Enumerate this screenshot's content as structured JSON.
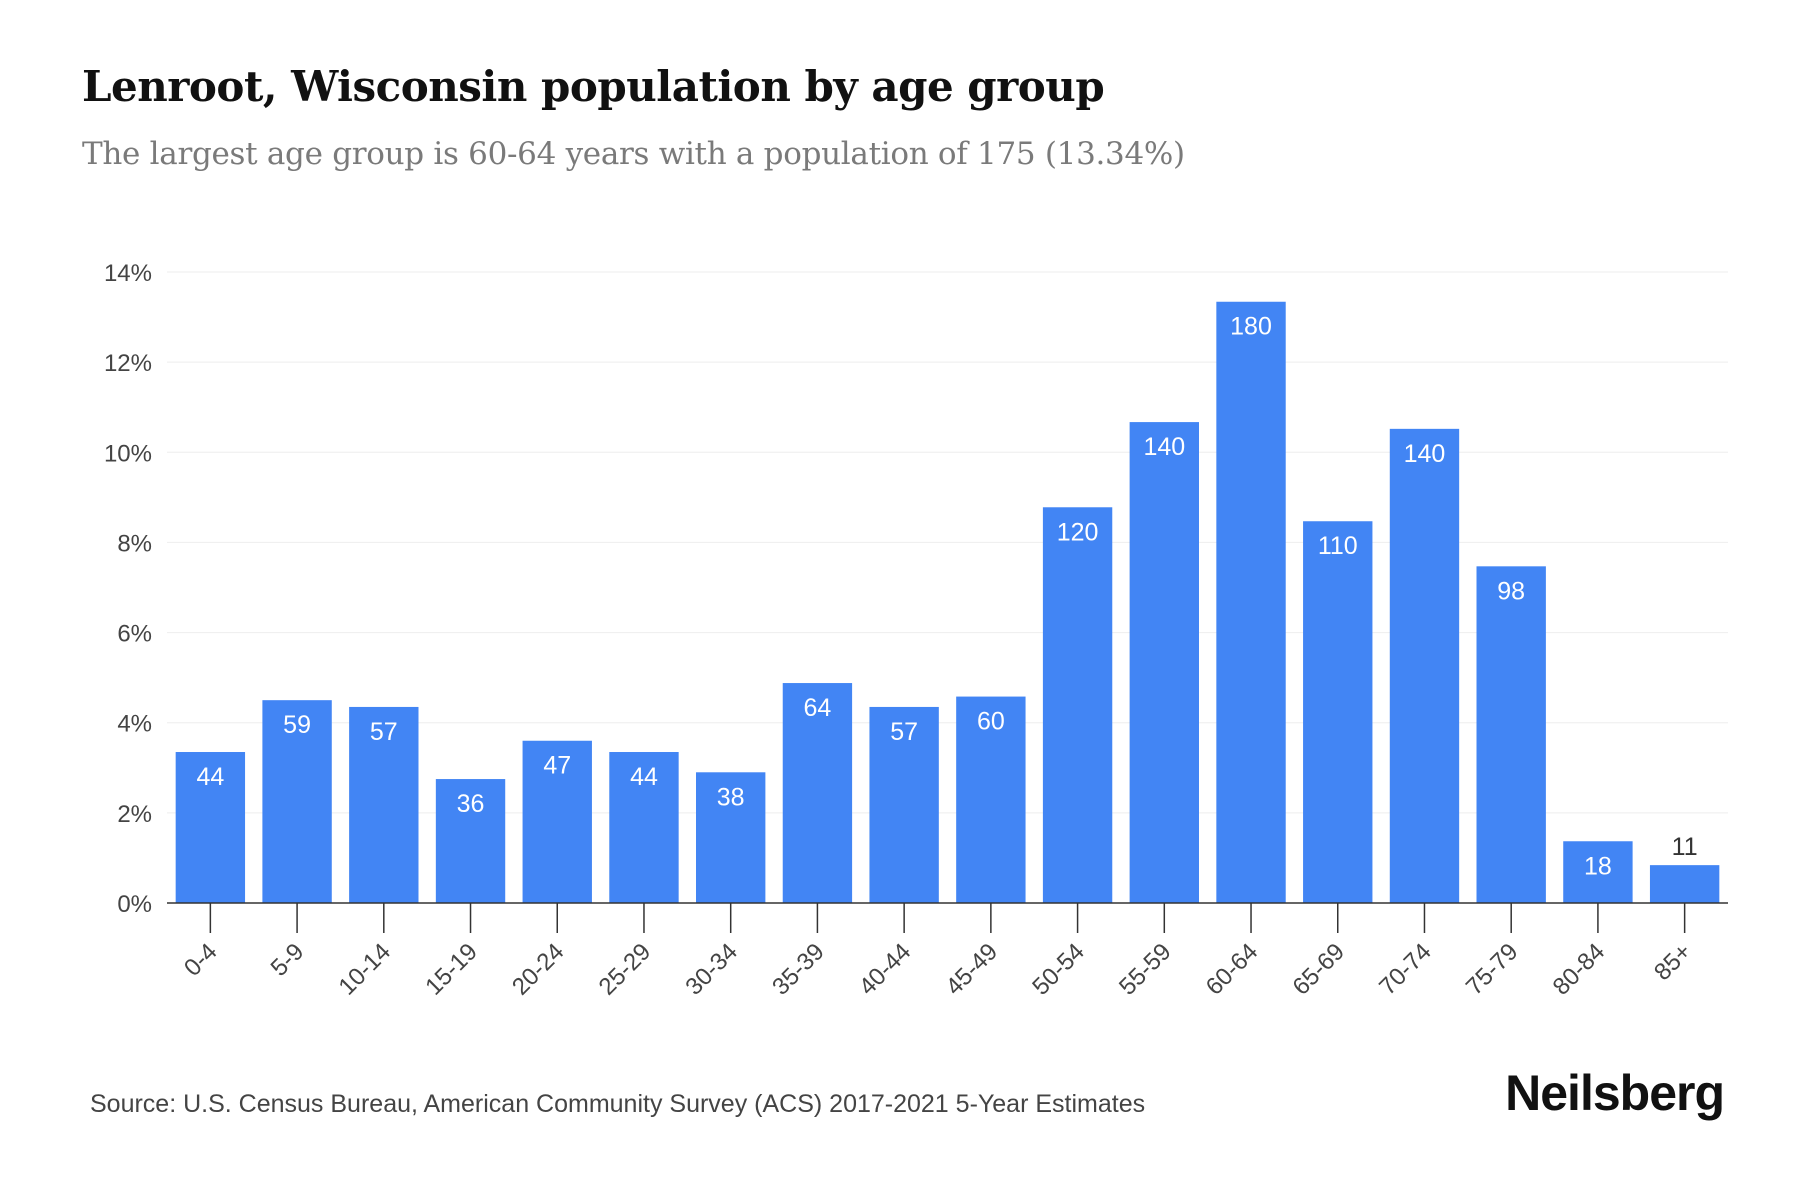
{
  "header": {
    "title": "Lenroot, Wisconsin population by age group",
    "subtitle": "The largest age group is 60-64 years with a population of 175 (13.34%)"
  },
  "footer": {
    "source": "Source: U.S. Census Bureau, American Community Survey (ACS) 2017-2021 5-Year Estimates",
    "brand": "Neilsberg"
  },
  "colors": {
    "bar": "#4285f4",
    "grid": "#eeeeee",
    "axis": "#333333",
    "tick_text": "#444444",
    "label_inside": "#ffffff",
    "label_outside": "#333333"
  },
  "chart_data": {
    "type": "bar",
    "title": "Lenroot, Wisconsin population by age group",
    "subtitle": "The largest age group is 60-64 years with a population of 175 (13.34%)",
    "categories": [
      "0-4",
      "5-9",
      "10-14",
      "15-19",
      "20-24",
      "25-29",
      "30-34",
      "35-39",
      "40-44",
      "45-49",
      "50-54",
      "55-59",
      "60-64",
      "65-69",
      "70-74",
      "75-79",
      "80-84",
      "85+"
    ],
    "values_percent": [
      3.35,
      4.5,
      4.35,
      2.75,
      3.6,
      3.35,
      2.9,
      4.88,
      4.35,
      4.58,
      8.78,
      10.67,
      13.34,
      8.47,
      10.52,
      7.47,
      1.37,
      0.84
    ],
    "data_labels": [
      "44",
      "59",
      "57",
      "36",
      "47",
      "44",
      "38",
      "64",
      "57",
      "60",
      "120",
      "140",
      "180",
      "110",
      "140",
      "98",
      "18",
      "11"
    ],
    "ylim": [
      0,
      14
    ],
    "yticks": [
      0,
      2,
      4,
      6,
      8,
      10,
      12,
      14
    ],
    "ytick_labels": [
      "0%",
      "2%",
      "4%",
      "6%",
      "8%",
      "10%",
      "12%",
      "14%"
    ],
    "xlabel": "",
    "ylabel": "",
    "grid": true,
    "legend": "none"
  }
}
